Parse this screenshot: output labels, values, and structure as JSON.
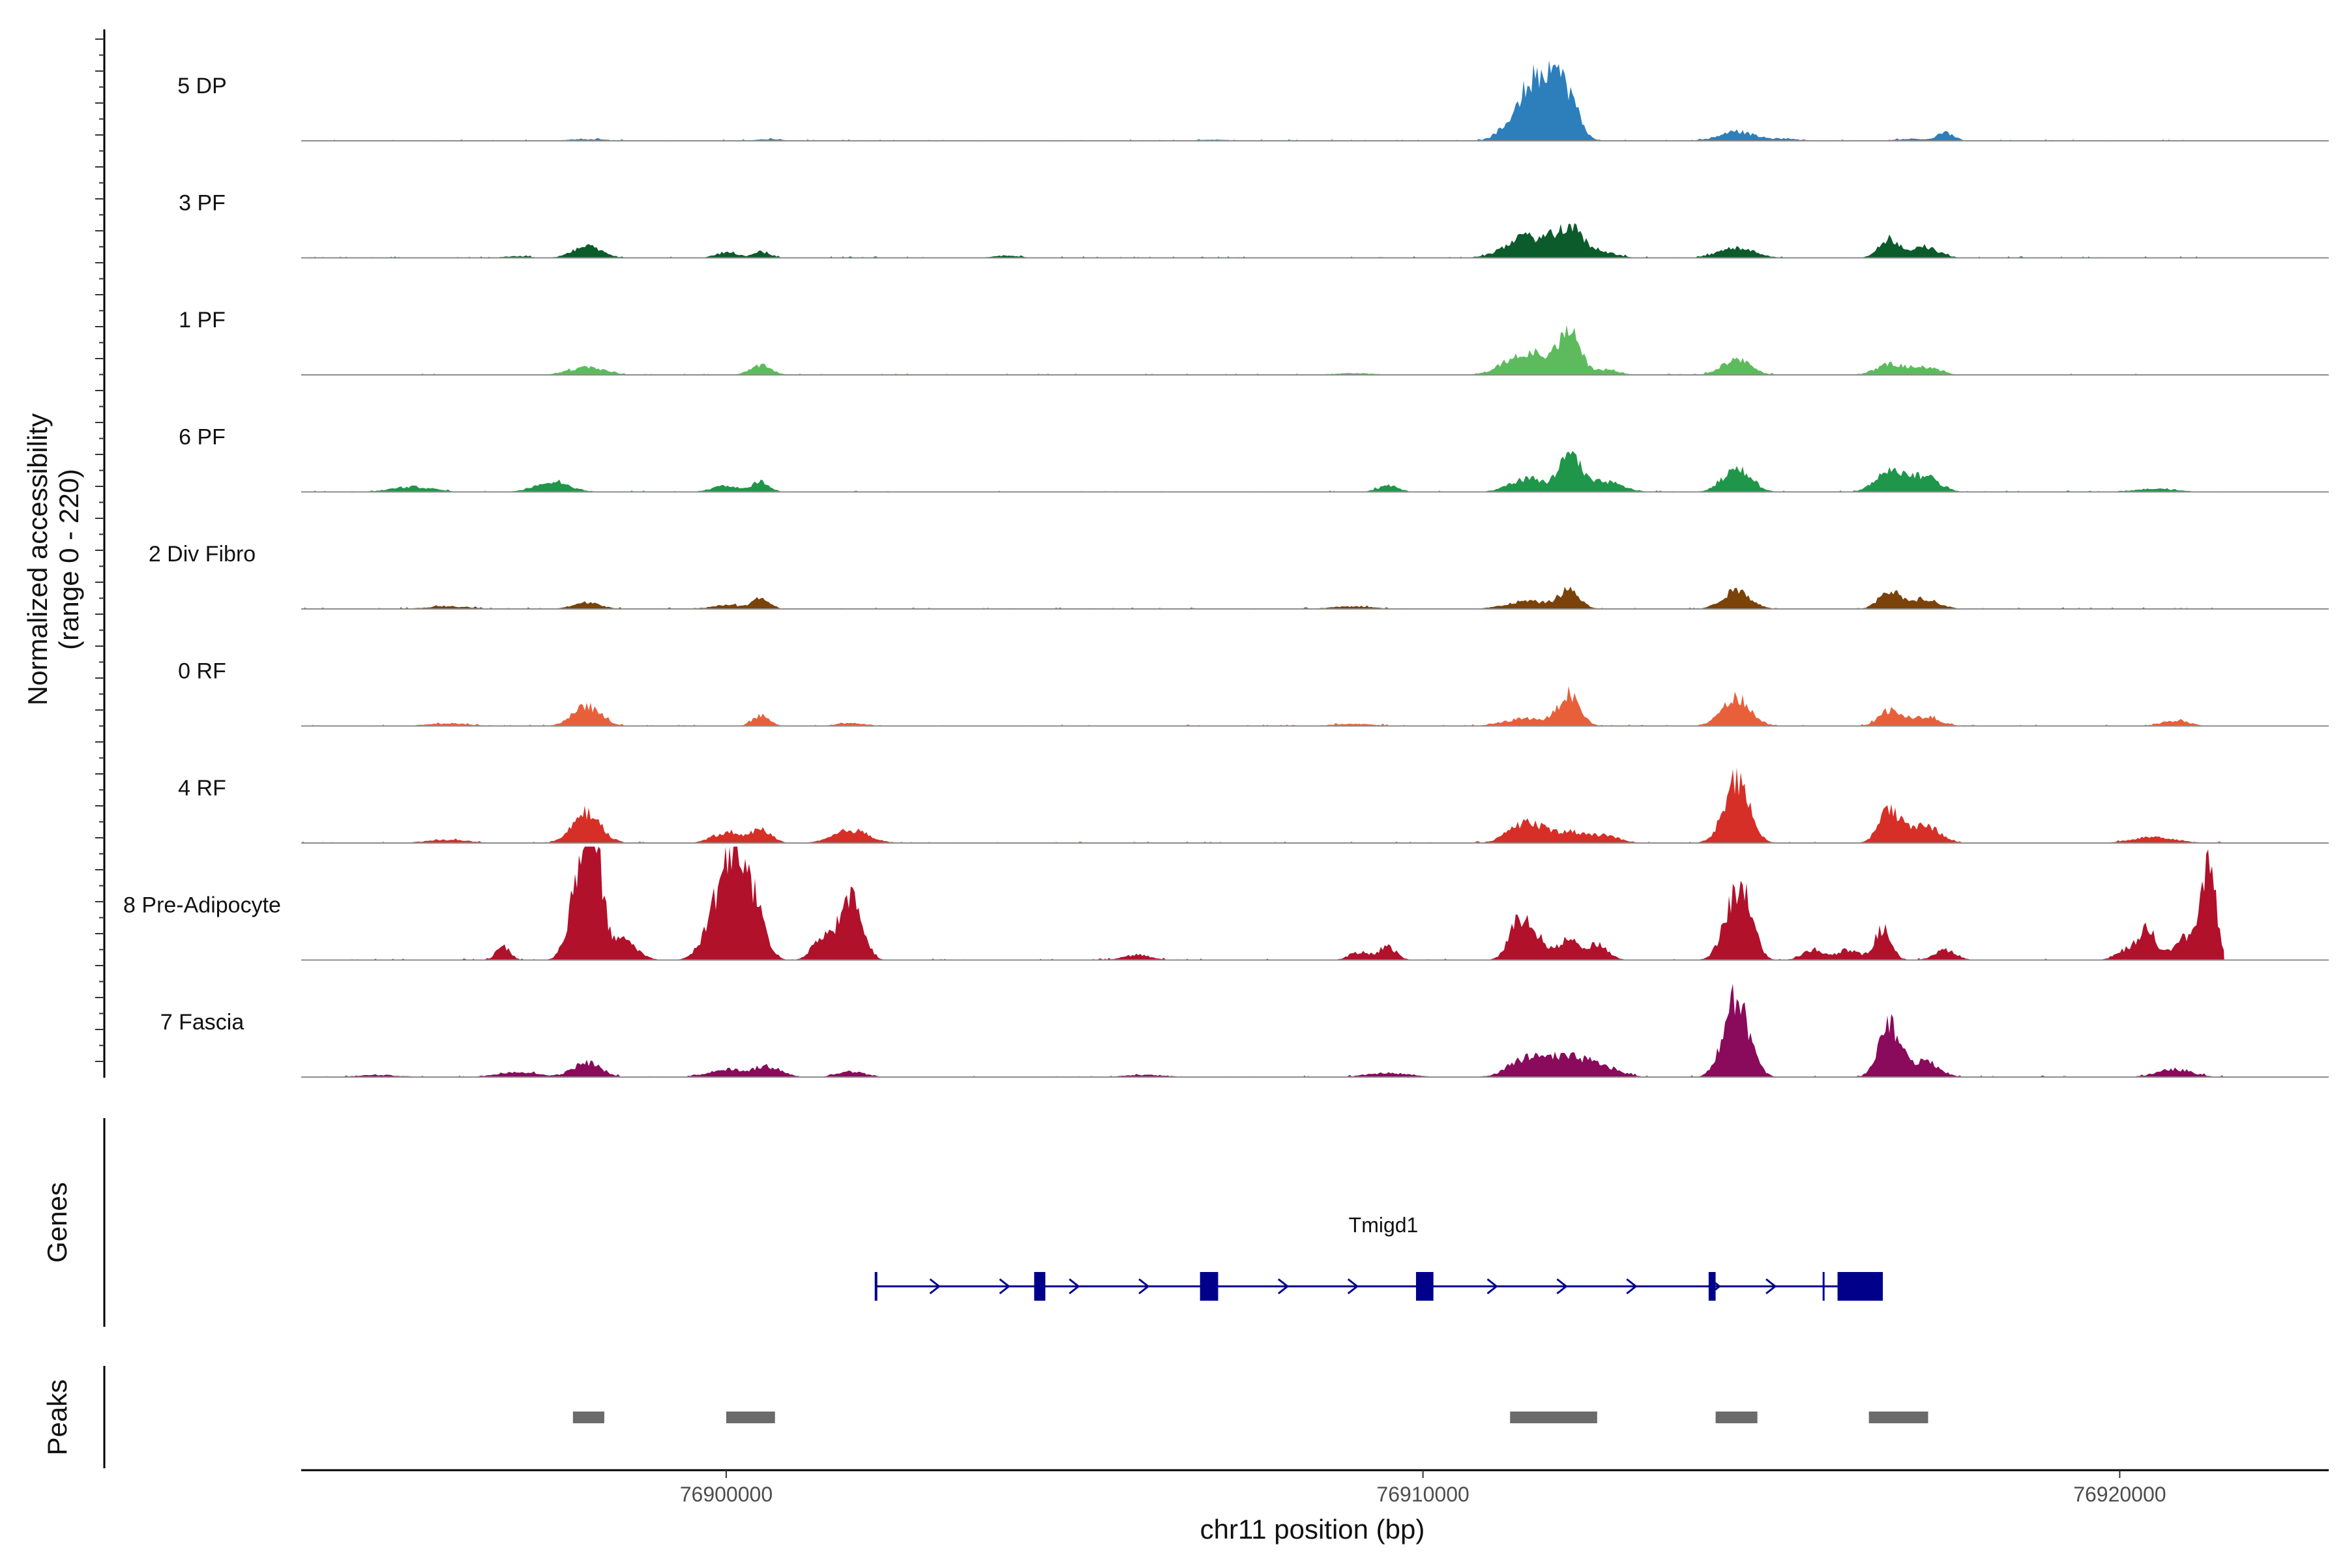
{
  "chart_data": {
    "type": "area",
    "ylabel_line1": "Normalized accessibility",
    "ylabel_line2": "(range 0 - 220)",
    "xlabel": "chr11 position (bp)",
    "xlim": [
      76893900,
      76923000
    ],
    "ylim": [
      0,
      220
    ],
    "x_ticks": [
      {
        "value": 76900000,
        "label": "76900000"
      },
      {
        "value": 76910000,
        "label": "76910000"
      },
      {
        "value": 76920000,
        "label": "76920000"
      }
    ],
    "track_start": 76893900,
    "track_end": 76921500,
    "series": [
      {
        "name": "5 DP",
        "color": "#2d7fbc",
        "peaks": [
          [
            76898000,
            3,
            300
          ],
          [
            76900600,
            3,
            200
          ],
          [
            76907000,
            2,
            300
          ],
          [
            76911500,
            70,
            250
          ],
          [
            76911700,
            60,
            200
          ],
          [
            76911900,
            45,
            150
          ],
          [
            76912100,
            70,
            150
          ],
          [
            76914500,
            18,
            250
          ],
          [
            76915200,
            4,
            200
          ],
          [
            76917500,
            15,
            120
          ],
          [
            76917000,
            4,
            200
          ]
        ]
      },
      {
        "name": "3 PF",
        "color": "#0c5b2b",
        "peaks": [
          [
            76897000,
            3,
            200
          ],
          [
            76898000,
            22,
            200
          ],
          [
            76900000,
            10,
            150
          ],
          [
            76900500,
            12,
            120
          ],
          [
            76904000,
            4,
            200
          ],
          [
            76911500,
            40,
            300
          ],
          [
            76912100,
            55,
            200
          ],
          [
            76912600,
            10,
            200
          ],
          [
            76914500,
            20,
            250
          ],
          [
            76916700,
            35,
            150
          ],
          [
            76917200,
            20,
            200
          ]
        ]
      },
      {
        "name": "1 PF",
        "color": "#5dbb5d",
        "peaks": [
          [
            76898000,
            15,
            250
          ],
          [
            76900500,
            18,
            150
          ],
          [
            76909000,
            3,
            300
          ],
          [
            76911500,
            45,
            300
          ],
          [
            76912100,
            80,
            150
          ],
          [
            76912600,
            10,
            200
          ],
          [
            76914500,
            30,
            200
          ],
          [
            76916700,
            20,
            200
          ],
          [
            76917200,
            15,
            200
          ]
        ]
      },
      {
        "name": "6 PF",
        "color": "#1f9649",
        "peaks": [
          [
            76895500,
            10,
            300
          ],
          [
            76897500,
            20,
            250
          ],
          [
            76900000,
            12,
            200
          ],
          [
            76900500,
            20,
            120
          ],
          [
            76909500,
            12,
            150
          ],
          [
            76911500,
            25,
            250
          ],
          [
            76912100,
            70,
            150
          ],
          [
            76912600,
            20,
            250
          ],
          [
            76914500,
            45,
            200
          ],
          [
            76916700,
            38,
            200
          ],
          [
            76917200,
            30,
            200
          ],
          [
            76920500,
            6,
            300
          ]
        ]
      },
      {
        "name": "2 Div Fibro",
        "color": "#7b4209",
        "peaks": [
          [
            76896000,
            5,
            300
          ],
          [
            76898000,
            12,
            200
          ],
          [
            76900000,
            8,
            200
          ],
          [
            76900500,
            20,
            120
          ],
          [
            76909000,
            5,
            300
          ],
          [
            76911500,
            15,
            300
          ],
          [
            76912100,
            35,
            150
          ],
          [
            76914500,
            35,
            200
          ],
          [
            76916700,
            35,
            150
          ],
          [
            76917200,
            20,
            200
          ]
        ]
      },
      {
        "name": "0 RF",
        "color": "#e8603a",
        "peaks": [
          [
            76896000,
            5,
            300
          ],
          [
            76898000,
            38,
            200
          ],
          [
            76900500,
            20,
            120
          ],
          [
            76901800,
            6,
            200
          ],
          [
            76909000,
            4,
            300
          ],
          [
            76911500,
            15,
            300
          ],
          [
            76912100,
            60,
            150
          ],
          [
            76914500,
            55,
            200
          ],
          [
            76916700,
            30,
            150
          ],
          [
            76917200,
            18,
            200
          ],
          [
            76920800,
            10,
            200
          ]
        ]
      },
      {
        "name": "4 RF",
        "color": "#d62f27",
        "peaks": [
          [
            76896000,
            6,
            300
          ],
          [
            76898000,
            60,
            200
          ],
          [
            76900000,
            20,
            200
          ],
          [
            76900500,
            25,
            150
          ],
          [
            76901800,
            25,
            250
          ],
          [
            76911500,
            40,
            250
          ],
          [
            76912100,
            20,
            200
          ],
          [
            76912600,
            15,
            200
          ],
          [
            76914500,
            120,
            180
          ],
          [
            76916700,
            65,
            150
          ],
          [
            76917200,
            35,
            200
          ],
          [
            76920500,
            12,
            300
          ]
        ]
      },
      {
        "name": "8 Pre-Adipocyte",
        "color": "#b1112b",
        "peaks": [
          [
            76896800,
            25,
            100
          ],
          [
            76897900,
            150,
            150
          ],
          [
            76898100,
            200,
            120
          ],
          [
            76898500,
            40,
            200
          ],
          [
            76899900,
            90,
            200
          ],
          [
            76900100,
            150,
            150
          ],
          [
            76900400,
            110,
            150
          ],
          [
            76901400,
            45,
            150
          ],
          [
            76901800,
            130,
            150
          ],
          [
            76905900,
            10,
            200
          ],
          [
            76909100,
            15,
            150
          ],
          [
            76909500,
            25,
            120
          ],
          [
            76911400,
            80,
            150
          ],
          [
            76911700,
            30,
            150
          ],
          [
            76912100,
            45,
            120
          ],
          [
            76912500,
            30,
            150
          ],
          [
            76914400,
            60,
            150
          ],
          [
            76914600,
            110,
            150
          ],
          [
            76915600,
            20,
            150
          ],
          [
            76916100,
            20,
            150
          ],
          [
            76916600,
            60,
            120
          ],
          [
            76917500,
            20,
            150
          ],
          [
            76920100,
            20,
            150
          ],
          [
            76920400,
            60,
            120
          ],
          [
            76920900,
            40,
            150
          ],
          [
            76921200,
            60,
            120
          ],
          [
            76921300,
            130,
            100
          ]
        ]
      },
      {
        "name": "7 Fascia",
        "color": "#8a0a5c",
        "peaks": [
          [
            76895000,
            4,
            300
          ],
          [
            76897000,
            10,
            300
          ],
          [
            76898000,
            28,
            200
          ],
          [
            76900000,
            15,
            250
          ],
          [
            76900600,
            20,
            200
          ],
          [
            76901800,
            10,
            200
          ],
          [
            76906000,
            4,
            300
          ],
          [
            76909500,
            8,
            300
          ],
          [
            76911500,
            35,
            250
          ],
          [
            76912100,
            35,
            300
          ],
          [
            76912600,
            15,
            250
          ],
          [
            76914500,
            150,
            180
          ],
          [
            76916700,
            100,
            150
          ],
          [
            76917200,
            30,
            200
          ],
          [
            76920800,
            15,
            250
          ]
        ]
      }
    ],
    "genes": {
      "label": "Genes",
      "name": "Tmigd1",
      "color": "#00008b",
      "start": 76902150,
      "end": 76916600,
      "exons": [
        [
          76904420,
          76904580
        ],
        [
          76906800,
          76907060
        ],
        [
          76909900,
          76910150
        ],
        [
          76914100,
          76914200
        ],
        [
          76915950,
          76916600
        ]
      ],
      "strand_marks": [
        76903000,
        76904000,
        76905000,
        76906000,
        76908000,
        76909000,
        76911000,
        76912000,
        76913000,
        76914200,
        76915000
      ]
    },
    "peaks_track": {
      "label": "Peaks",
      "color": "#6b6b6b",
      "regions": [
        [
          76897800,
          76898250
        ],
        [
          76900000,
          76900700
        ],
        [
          76911250,
          76912500
        ],
        [
          76914200,
          76914800
        ],
        [
          76916400,
          76917250
        ]
      ]
    }
  }
}
